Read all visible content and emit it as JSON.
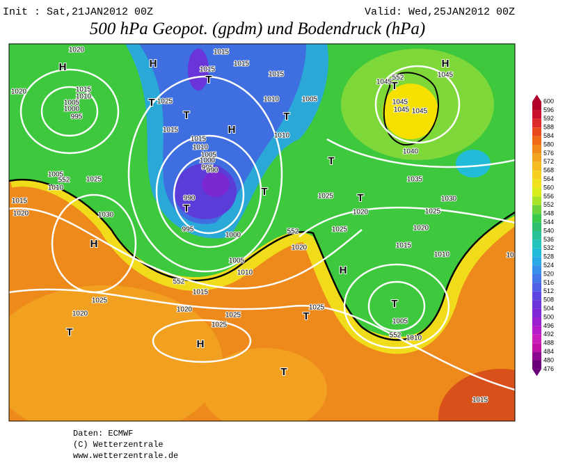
{
  "header": {
    "init": "Init : Sat,21JAN2012 00Z",
    "valid": "Valid: Wed,25JAN2012 00Z",
    "title": "500 hPa Geopot. (gpdm) und Bodendruck (hPa)"
  },
  "colorbar": {
    "labels": [
      600,
      596,
      592,
      588,
      584,
      580,
      576,
      572,
      568,
      564,
      560,
      556,
      552,
      548,
      544,
      540,
      536,
      532,
      528,
      524,
      520,
      516,
      512,
      508,
      504,
      500,
      496,
      492,
      488,
      484,
      480,
      476
    ],
    "colors": [
      "#b0002a",
      "#c8102e",
      "#dc2a2a",
      "#e84a1e",
      "#ee6a14",
      "#f08a18",
      "#f2a41c",
      "#f4bc1e",
      "#f6d020",
      "#f2e21e",
      "#d8ec1e",
      "#a8e42a",
      "#6cd43a",
      "#3cc84a",
      "#2ec070",
      "#28c298",
      "#24c4bc",
      "#22bcd8",
      "#2aa8e6",
      "#3890ea",
      "#4478ea",
      "#5060e6",
      "#5c48e0",
      "#6a34d8",
      "#8028d4",
      "#9a20d0",
      "#b41cc8",
      "#cc1cbc",
      "#c010a8",
      "#8c0890",
      "#6a0078"
    ]
  },
  "map_labels": [
    "H",
    "H",
    "1020",
    "1015",
    "1015",
    "1015",
    "1015",
    "T",
    "T",
    "1025",
    "T",
    "1015",
    "1010",
    "1005",
    "1000",
    "995",
    "1020",
    "1010",
    "T",
    "1005",
    "H",
    "1015",
    "1010",
    "1015",
    "1010",
    "1005",
    "1000",
    "995",
    "990",
    "1005",
    "1025",
    "1010",
    "1015",
    "1020",
    "1030",
    "990",
    "T",
    "995",
    "T",
    "1000",
    "H",
    "1005",
    "1010",
    "1015",
    "1020",
    "1025",
    "1025",
    "1020",
    "T",
    "H",
    "1025",
    "1025",
    "T",
    "T",
    "1020",
    "H",
    "T",
    "1025",
    "T",
    "1020",
    "1025",
    "1035",
    "1030",
    "1025",
    "1020",
    "1015",
    "1010",
    "T",
    "1005",
    "1010",
    "1015",
    "1040",
    "1045",
    "1045",
    "1045",
    "1045",
    "H",
    "T",
    "1045",
    "552",
    "552",
    "552",
    "552",
    "552",
    "10"
  ],
  "footer": {
    "source": "Daten: ECMWF",
    "copyright": "(C) Wetterzentrale",
    "url": "www.wetterzentrale.de"
  }
}
